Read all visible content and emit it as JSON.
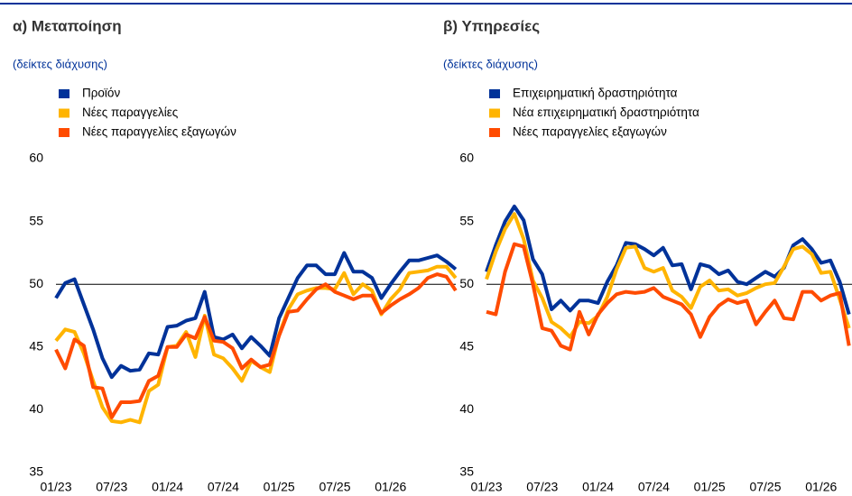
{
  "chart_data": [
    {
      "type": "line",
      "title": "α) Μεταποίηση",
      "subtitle": "(δείκτες διάχυσης)",
      "categories": [
        "01/23",
        null,
        null,
        null,
        null,
        null,
        "07/23",
        null,
        null,
        null,
        null,
        null,
        "01/24",
        null,
        null,
        null,
        null,
        null,
        "07/24",
        null,
        null,
        null,
        null,
        null,
        "01/25",
        null,
        null,
        null,
        null,
        null,
        "07/25",
        null,
        null,
        null,
        null,
        null,
        "01/26",
        null,
        null,
        null,
        null,
        null,
        null,
        null
      ],
      "series": [
        {
          "name": "Προϊόν",
          "color": "#003299",
          "values": [
            48.9,
            50.1,
            50.4,
            48.4,
            46.4,
            44.1,
            42.6,
            43.5,
            43.1,
            43.2,
            44.5,
            44.4,
            46.6,
            46.7,
            47.1,
            47.3,
            49.4,
            45.8,
            45.6,
            46.0,
            44.9,
            45.8,
            45.1,
            44.3,
            47.3,
            48.9,
            50.5,
            51.5,
            51.5,
            50.8,
            50.8,
            52.5,
            51.0,
            51.0,
            50.5,
            48.9,
            50.0,
            51.0,
            51.9,
            51.9,
            52.1,
            52.3,
            51.8,
            51.2
          ]
        },
        {
          "name": "Νέες παραγγελίες",
          "color": "#ffb400",
          "values": [
            45.5,
            46.4,
            46.2,
            44.5,
            42.3,
            40.2,
            39.1,
            39.0,
            39.2,
            39.0,
            41.5,
            42.0,
            45.0,
            45.1,
            46.2,
            44.2,
            47.5,
            44.4,
            44.1,
            43.3,
            42.3,
            43.9,
            43.4,
            43.0,
            46.0,
            48.0,
            49.2,
            49.5,
            49.7,
            49.7,
            49.6,
            50.9,
            49.2,
            50.0,
            49.5,
            47.6,
            48.8,
            49.6,
            50.9,
            51.0,
            51.1,
            51.4,
            51.4,
            50.5
          ]
        },
        {
          "name": "Νέες παραγγελίες εξαγωγών",
          "color": "#ff4b00",
          "values": [
            44.8,
            43.3,
            45.6,
            45.1,
            41.8,
            41.7,
            39.4,
            40.6,
            40.6,
            40.7,
            42.3,
            42.7,
            45.0,
            45.0,
            46.0,
            45.7,
            47.4,
            45.5,
            45.4,
            44.9,
            43.3,
            44.0,
            43.4,
            43.6,
            45.9,
            47.8,
            47.9,
            48.8,
            49.6,
            50.0,
            49.4,
            49.1,
            48.8,
            49.1,
            49.1,
            47.7,
            48.3,
            48.8,
            49.2,
            49.7,
            50.5,
            50.8,
            50.6,
            49.5
          ]
        }
      ],
      "ylim": [
        35,
        60
      ],
      "yticks": [
        35,
        40,
        45,
        50,
        55,
        60
      ],
      "hline": 50
    },
    {
      "type": "line",
      "title": "β) Υπηρεσίες",
      "subtitle": "(δείκτες διάχυσης)",
      "categories": [
        "01/23",
        null,
        null,
        null,
        null,
        null,
        "07/23",
        null,
        null,
        null,
        null,
        null,
        "01/24",
        null,
        null,
        null,
        null,
        null,
        "07/24",
        null,
        null,
        null,
        null,
        null,
        "01/25",
        null,
        null,
        null,
        null,
        null,
        "07/25",
        null,
        null,
        null,
        null,
        null,
        "01/26",
        null,
        null,
        null
      ],
      "series": [
        {
          "name": "Επιχειρηματική δραστηριότητα",
          "color": "#003299",
          "values": [
            51.0,
            53.1,
            55.0,
            56.2,
            55.1,
            52.0,
            50.8,
            48.0,
            48.7,
            47.9,
            48.7,
            48.7,
            48.5,
            50.2,
            51.5,
            53.3,
            53.2,
            52.8,
            52.3,
            52.9,
            51.5,
            51.6,
            49.6,
            51.6,
            51.4,
            50.8,
            51.1,
            50.2,
            50.0,
            50.5,
            51.0,
            50.6,
            51.3,
            53.1,
            53.6,
            52.8,
            51.7,
            51.9,
            50.2,
            47.6
          ]
        },
        {
          "name": "Νέα επιχειρηματική δραστηριότητα",
          "color": "#ffb400",
          "values": [
            50.4,
            52.6,
            54.4,
            55.6,
            53.6,
            50.3,
            48.9,
            47.0,
            46.5,
            45.8,
            47.0,
            46.9,
            47.5,
            49.0,
            51.2,
            52.9,
            53.0,
            51.3,
            51.0,
            51.3,
            49.5,
            49.0,
            48.1,
            49.8,
            50.3,
            49.5,
            49.6,
            49.1,
            49.3,
            49.7,
            50.0,
            50.1,
            51.4,
            52.8,
            53.0,
            52.4,
            50.9,
            51.0,
            48.8,
            46.5
          ]
        },
        {
          "name": "Νέες παραγγελίες εξαγωγών",
          "color": "#ff4b00",
          "values": [
            47.8,
            47.6,
            51.0,
            53.2,
            53.0,
            50.0,
            46.5,
            46.3,
            45.1,
            44.8,
            47.8,
            46.0,
            47.6,
            48.5,
            49.2,
            49.4,
            49.3,
            49.4,
            49.7,
            49.0,
            48.7,
            48.4,
            47.6,
            45.8,
            47.4,
            48.3,
            48.8,
            48.5,
            48.7,
            46.8,
            47.8,
            48.7,
            47.3,
            47.2,
            49.4,
            49.4,
            48.7,
            49.1,
            49.3,
            45.1
          ]
        }
      ],
      "ylim": [
        35,
        60
      ],
      "yticks": [
        35,
        40,
        45,
        50,
        55,
        60
      ],
      "hline": 50
    }
  ]
}
